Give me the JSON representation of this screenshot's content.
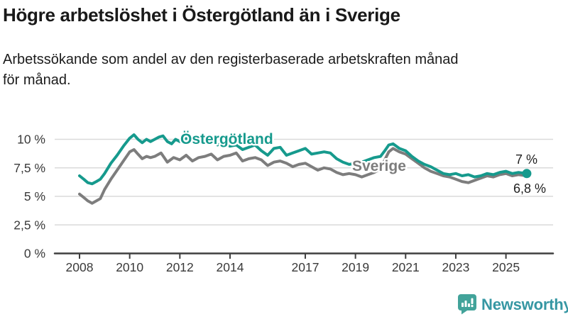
{
  "header": {
    "title": "Högre arbetslöshet i Östergötland än i Sverige",
    "subtitle_line1": "Arbetssökande som andel av den registerbaserade arbetskraften månad",
    "subtitle_line2": "för månad."
  },
  "chart_data": {
    "type": "line",
    "unit": "percent",
    "x_axis": {
      "min": 2008,
      "max": 2026
    },
    "y_axis": {
      "min": 0,
      "max": 10.5,
      "grid": true
    },
    "y_ticks": [
      {
        "label": "0 %",
        "value": 0
      },
      {
        "label": "2,5 %",
        "value": 2.5
      },
      {
        "label": "5 %",
        "value": 5
      },
      {
        "label": "7,5 %",
        "value": 7.5
      },
      {
        "label": "10 %",
        "value": 10
      }
    ],
    "x_ticks": [
      {
        "label": "2008",
        "year": 2008
      },
      {
        "label": "2010",
        "year": 2010
      },
      {
        "label": "2012",
        "year": 2012
      },
      {
        "label": "2014",
        "year": 2014
      },
      {
        "label": "2017",
        "year": 2017
      },
      {
        "label": "2019",
        "year": 2019
      },
      {
        "label": "2021",
        "year": 2021
      },
      {
        "label": "2023",
        "year": 2023
      },
      {
        "label": "2025",
        "year": 2025
      }
    ],
    "series": [
      {
        "name": "Östergötland",
        "color": "#169a8d",
        "end_label": "7 %",
        "end_dot": true,
        "points": [
          [
            2008.0,
            6.8
          ],
          [
            2008.17,
            6.5
          ],
          [
            2008.33,
            6.2
          ],
          [
            2008.5,
            6.1
          ],
          [
            2008.67,
            6.3
          ],
          [
            2008.83,
            6.5
          ],
          [
            2009.0,
            7.0
          ],
          [
            2009.25,
            7.9
          ],
          [
            2009.5,
            8.6
          ],
          [
            2009.75,
            9.4
          ],
          [
            2010.0,
            10.1
          ],
          [
            2010.17,
            10.4
          ],
          [
            2010.33,
            10.0
          ],
          [
            2010.5,
            9.7
          ],
          [
            2010.67,
            10.0
          ],
          [
            2010.83,
            9.8
          ],
          [
            2011.0,
            10.0
          ],
          [
            2011.17,
            10.2
          ],
          [
            2011.33,
            10.3
          ],
          [
            2011.5,
            9.8
          ],
          [
            2011.67,
            9.6
          ],
          [
            2011.83,
            10.0
          ],
          [
            2012.0,
            9.8
          ],
          [
            2012.25,
            10.1
          ],
          [
            2012.5,
            9.7
          ],
          [
            2012.75,
            9.9
          ],
          [
            2013.0,
            9.8
          ],
          [
            2013.25,
            10.0
          ],
          [
            2013.5,
            9.5
          ],
          [
            2013.75,
            9.7
          ],
          [
            2014.0,
            9.4
          ],
          [
            2014.25,
            9.5
          ],
          [
            2014.5,
            9.1
          ],
          [
            2014.75,
            9.3
          ],
          [
            2015.0,
            9.5
          ],
          [
            2015.25,
            9.0
          ],
          [
            2015.5,
            8.6
          ],
          [
            2015.75,
            9.2
          ],
          [
            2016.0,
            9.3
          ],
          [
            2016.25,
            8.6
          ],
          [
            2016.5,
            8.8
          ],
          [
            2016.75,
            9.0
          ],
          [
            2017.0,
            9.2
          ],
          [
            2017.25,
            8.7
          ],
          [
            2017.5,
            8.8
          ],
          [
            2017.75,
            8.9
          ],
          [
            2018.0,
            8.8
          ],
          [
            2018.25,
            8.3
          ],
          [
            2018.5,
            8.0
          ],
          [
            2018.75,
            7.8
          ],
          [
            2019.0,
            7.9
          ],
          [
            2019.25,
            8.0
          ],
          [
            2019.5,
            8.2
          ],
          [
            2019.75,
            8.4
          ],
          [
            2020.0,
            8.5
          ],
          [
            2020.17,
            9.0
          ],
          [
            2020.33,
            9.5
          ],
          [
            2020.5,
            9.6
          ],
          [
            2020.75,
            9.2
          ],
          [
            2021.0,
            9.0
          ],
          [
            2021.25,
            8.5
          ],
          [
            2021.5,
            8.1
          ],
          [
            2021.75,
            7.8
          ],
          [
            2022.0,
            7.6
          ],
          [
            2022.25,
            7.3
          ],
          [
            2022.5,
            7.0
          ],
          [
            2022.75,
            6.9
          ],
          [
            2023.0,
            7.0
          ],
          [
            2023.25,
            6.8
          ],
          [
            2023.5,
            6.9
          ],
          [
            2023.75,
            6.7
          ],
          [
            2024.0,
            6.8
          ],
          [
            2024.25,
            7.0
          ],
          [
            2024.5,
            6.9
          ],
          [
            2024.75,
            7.1
          ],
          [
            2025.0,
            7.2
          ],
          [
            2025.25,
            7.0
          ],
          [
            2025.5,
            7.1
          ],
          [
            2025.83,
            7.0
          ]
        ]
      },
      {
        "name": "Sverige",
        "color": "#7d7d7d",
        "end_label": "6,8 %",
        "end_dot": false,
        "points": [
          [
            2008.0,
            5.2
          ],
          [
            2008.17,
            4.9
          ],
          [
            2008.33,
            4.6
          ],
          [
            2008.5,
            4.4
          ],
          [
            2008.67,
            4.6
          ],
          [
            2008.83,
            4.8
          ],
          [
            2009.0,
            5.6
          ],
          [
            2009.25,
            6.5
          ],
          [
            2009.5,
            7.3
          ],
          [
            2009.75,
            8.1
          ],
          [
            2010.0,
            8.9
          ],
          [
            2010.17,
            9.1
          ],
          [
            2010.33,
            8.7
          ],
          [
            2010.5,
            8.3
          ],
          [
            2010.67,
            8.5
          ],
          [
            2010.83,
            8.4
          ],
          [
            2011.0,
            8.5
          ],
          [
            2011.25,
            8.8
          ],
          [
            2011.5,
            8.0
          ],
          [
            2011.75,
            8.4
          ],
          [
            2012.0,
            8.2
          ],
          [
            2012.25,
            8.6
          ],
          [
            2012.5,
            8.1
          ],
          [
            2012.75,
            8.4
          ],
          [
            2013.0,
            8.5
          ],
          [
            2013.25,
            8.7
          ],
          [
            2013.5,
            8.2
          ],
          [
            2013.75,
            8.5
          ],
          [
            2014.0,
            8.6
          ],
          [
            2014.25,
            8.8
          ],
          [
            2014.5,
            8.1
          ],
          [
            2014.75,
            8.3
          ],
          [
            2015.0,
            8.4
          ],
          [
            2015.25,
            8.2
          ],
          [
            2015.5,
            7.7
          ],
          [
            2015.75,
            8.0
          ],
          [
            2016.0,
            8.1
          ],
          [
            2016.25,
            7.9
          ],
          [
            2016.5,
            7.6
          ],
          [
            2016.75,
            7.8
          ],
          [
            2017.0,
            7.9
          ],
          [
            2017.25,
            7.6
          ],
          [
            2017.5,
            7.3
          ],
          [
            2017.75,
            7.5
          ],
          [
            2018.0,
            7.4
          ],
          [
            2018.25,
            7.1
          ],
          [
            2018.5,
            6.9
          ],
          [
            2018.75,
            7.0
          ],
          [
            2019.0,
            6.9
          ],
          [
            2019.25,
            6.7
          ],
          [
            2019.5,
            6.9
          ],
          [
            2019.75,
            7.1
          ],
          [
            2020.0,
            7.4
          ],
          [
            2020.17,
            8.2
          ],
          [
            2020.33,
            8.9
          ],
          [
            2020.5,
            9.2
          ],
          [
            2020.75,
            8.9
          ],
          [
            2021.0,
            8.7
          ],
          [
            2021.25,
            8.3
          ],
          [
            2021.5,
            7.9
          ],
          [
            2021.75,
            7.5
          ],
          [
            2022.0,
            7.2
          ],
          [
            2022.25,
            7.0
          ],
          [
            2022.5,
            6.8
          ],
          [
            2022.75,
            6.7
          ],
          [
            2023.0,
            6.5
          ],
          [
            2023.25,
            6.3
          ],
          [
            2023.5,
            6.2
          ],
          [
            2023.75,
            6.4
          ],
          [
            2024.0,
            6.6
          ],
          [
            2024.25,
            6.8
          ],
          [
            2024.5,
            6.7
          ],
          [
            2024.75,
            6.9
          ],
          [
            2025.0,
            7.0
          ],
          [
            2025.25,
            6.8
          ],
          [
            2025.5,
            6.9
          ],
          [
            2025.83,
            6.8
          ]
        ]
      }
    ],
    "legend_position": "inline-labels"
  },
  "branding": {
    "wordmark": "Newsworthy",
    "icon_color": "#42a39a",
    "wordmark_color": "#3697a3"
  }
}
